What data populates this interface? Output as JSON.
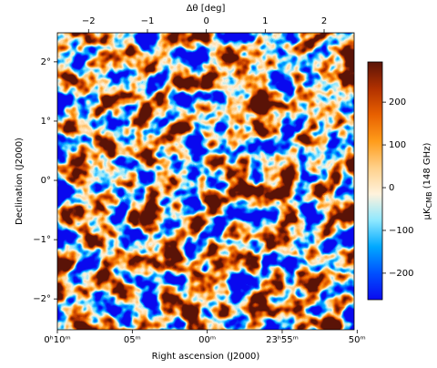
{
  "chart_data": {
    "type": "heatmap",
    "top_axis_label": "Δθ [deg]",
    "x_label": "Right ascension (J2000)",
    "y_label": "Declination (J2000)",
    "colorbar_label": {
      "unit": "μK",
      "sub": "CMB",
      "rest": " (148 GHz)"
    },
    "x2lim": [
      -2.53,
      2.51
    ],
    "x2ticks": [
      {
        "value": -2,
        "label": "−2"
      },
      {
        "value": -1,
        "label": "−1"
      },
      0,
      1,
      2
    ],
    "xlim": [
      10,
      -9.8
    ],
    "xticks": [
      {
        "value": 10,
        "label": "0ʰ10ᵐ"
      },
      {
        "value": 5,
        "label": "05ᵐ"
      },
      {
        "value": 0,
        "label": "00ᵐ"
      },
      {
        "value": -5,
        "label": "23ʰ55ᵐ"
      },
      {
        "value": -10,
        "label": "50ᵐ"
      }
    ],
    "ylim": [
      -2.52,
      2.49
    ],
    "yticks": [
      {
        "value": 2,
        "label": "2°"
      },
      {
        "value": 1,
        "label": "1°"
      },
      {
        "value": 0,
        "label": "0°"
      },
      {
        "value": -1,
        "label": "−1°"
      },
      {
        "value": -2,
        "label": "−2°"
      }
    ],
    "clim": [
      -262,
      294
    ],
    "cticks": [
      {
        "value": -200,
        "label": "−200"
      },
      {
        "value": -100,
        "label": "−100"
      },
      0,
      100,
      200
    ],
    "colormap": [
      "#0a0af0",
      "#0050ff",
      "#00a8ff",
      "#8ee8ff",
      "#fff2dc",
      "#ffd08a",
      "#ff9c1a",
      "#e86000",
      "#b03000",
      "#5a1408"
    ]
  }
}
